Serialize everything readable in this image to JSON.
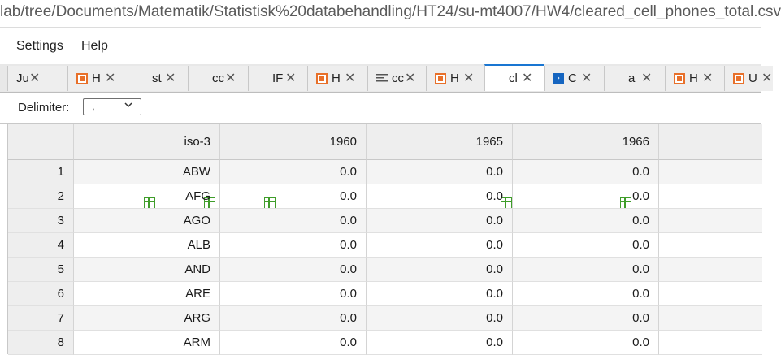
{
  "address_bar": {
    "url": "lab/tree/Documents/Matematik/Statistisk%20databehandling/HT24/su-mt4007/HW4/cleared_cell_phones_total.csv"
  },
  "menu": {
    "items": [
      "Settings",
      "Help"
    ]
  },
  "tabs": [
    {
      "label": "Ju",
      "icon": "jupyter-icon",
      "kind": "plain"
    },
    {
      "label": "H",
      "icon": "html-file-icon",
      "kind": "orange"
    },
    {
      "label": "st",
      "icon": "csv-grid-icon",
      "kind": "grid"
    },
    {
      "label": "cc",
      "icon": "csv-grid-icon",
      "kind": "grid"
    },
    {
      "label": "IF",
      "icon": "csv-grid-icon",
      "kind": "grid"
    },
    {
      "label": "H",
      "icon": "html-file-icon",
      "kind": "orange"
    },
    {
      "label": "cc",
      "icon": "text-file-icon",
      "kind": "lines"
    },
    {
      "label": "H",
      "icon": "html-file-icon",
      "kind": "orange"
    },
    {
      "label": "cl",
      "icon": "csv-grid-icon",
      "kind": "grid",
      "active": true
    },
    {
      "label": "C",
      "icon": "console-icon",
      "kind": "console"
    },
    {
      "label": "a",
      "icon": "csv-grid-icon",
      "kind": "grid"
    },
    {
      "label": "H",
      "icon": "html-file-icon",
      "kind": "orange"
    },
    {
      "label": "U",
      "icon": "html-file-icon",
      "kind": "orange"
    }
  ],
  "toolbar": {
    "delimiter_label": "Delimiter:",
    "delimiter_value": ","
  },
  "table": {
    "columns": [
      "",
      "iso-3",
      "1960",
      "1965",
      "1966"
    ],
    "rows": [
      [
        "1",
        "ABW",
        "0.0",
        "0.0",
        "0.0"
      ],
      [
        "2",
        "AFG",
        "0.0",
        "0.0",
        "0.0"
      ],
      [
        "3",
        "AGO",
        "0.0",
        "0.0",
        "0.0"
      ],
      [
        "4",
        "ALB",
        "0.0",
        "0.0",
        "0.0"
      ],
      [
        "5",
        "AND",
        "0.0",
        "0.0",
        "0.0"
      ],
      [
        "6",
        "ARE",
        "0.0",
        "0.0",
        "0.0"
      ],
      [
        "7",
        "ARG",
        "0.0",
        "0.0",
        "0.0"
      ],
      [
        "8",
        "ARM",
        "0.0",
        "0.0",
        "0.0"
      ]
    ]
  },
  "colors": {
    "active_tab_accent": "#1976d2",
    "grid_icon": "#3f9d2a",
    "html_icon": "#e8702a",
    "console_icon": "#1565c0"
  }
}
